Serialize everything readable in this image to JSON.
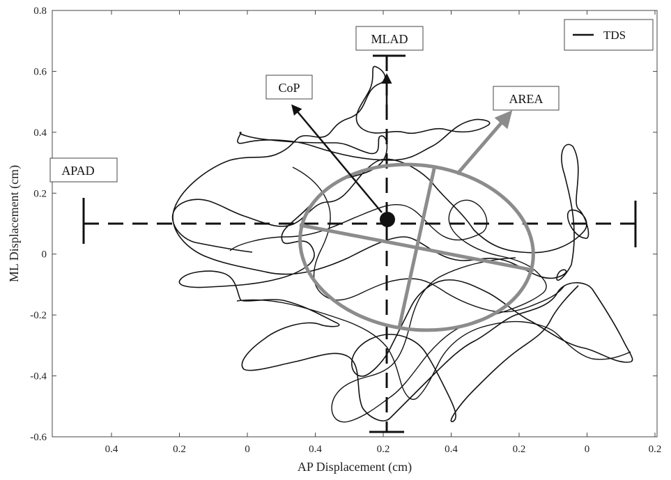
{
  "chart_data": {
    "type": "line",
    "title": "",
    "xlabel": "AP Displacement (cm)",
    "ylabel": "ML Displacement (cm)",
    "x_tick_labels": [
      "0.4",
      "0.2",
      "0",
      "0.4",
      "0.2",
      "0.4",
      "0.2",
      "0",
      "0.2"
    ],
    "y_ticks": [
      -0.6,
      -0.4,
      -0.2,
      0,
      0.2,
      0.4,
      0.6,
      0.8
    ],
    "y_tick_labels": [
      "-0.6",
      "-0.4",
      "-0.2",
      "0",
      "0.2",
      "0.4",
      "0.6",
      "0.8"
    ],
    "ylim": [
      -0.6,
      0.8
    ],
    "grid": false,
    "legend": {
      "position": "top-right",
      "entries": [
        {
          "label": "TDS",
          "color": "#111111"
        }
      ]
    },
    "annotations": {
      "mlad": "MLAD",
      "cop": "CoP",
      "area": "AREA",
      "apad": "APAD"
    },
    "colors": {
      "trace": "#111111",
      "ellipse": "#8c8c8c",
      "markers": "#111111"
    },
    "cop_point": {
      "x_index": 4.52,
      "y": 0.11
    }
  }
}
